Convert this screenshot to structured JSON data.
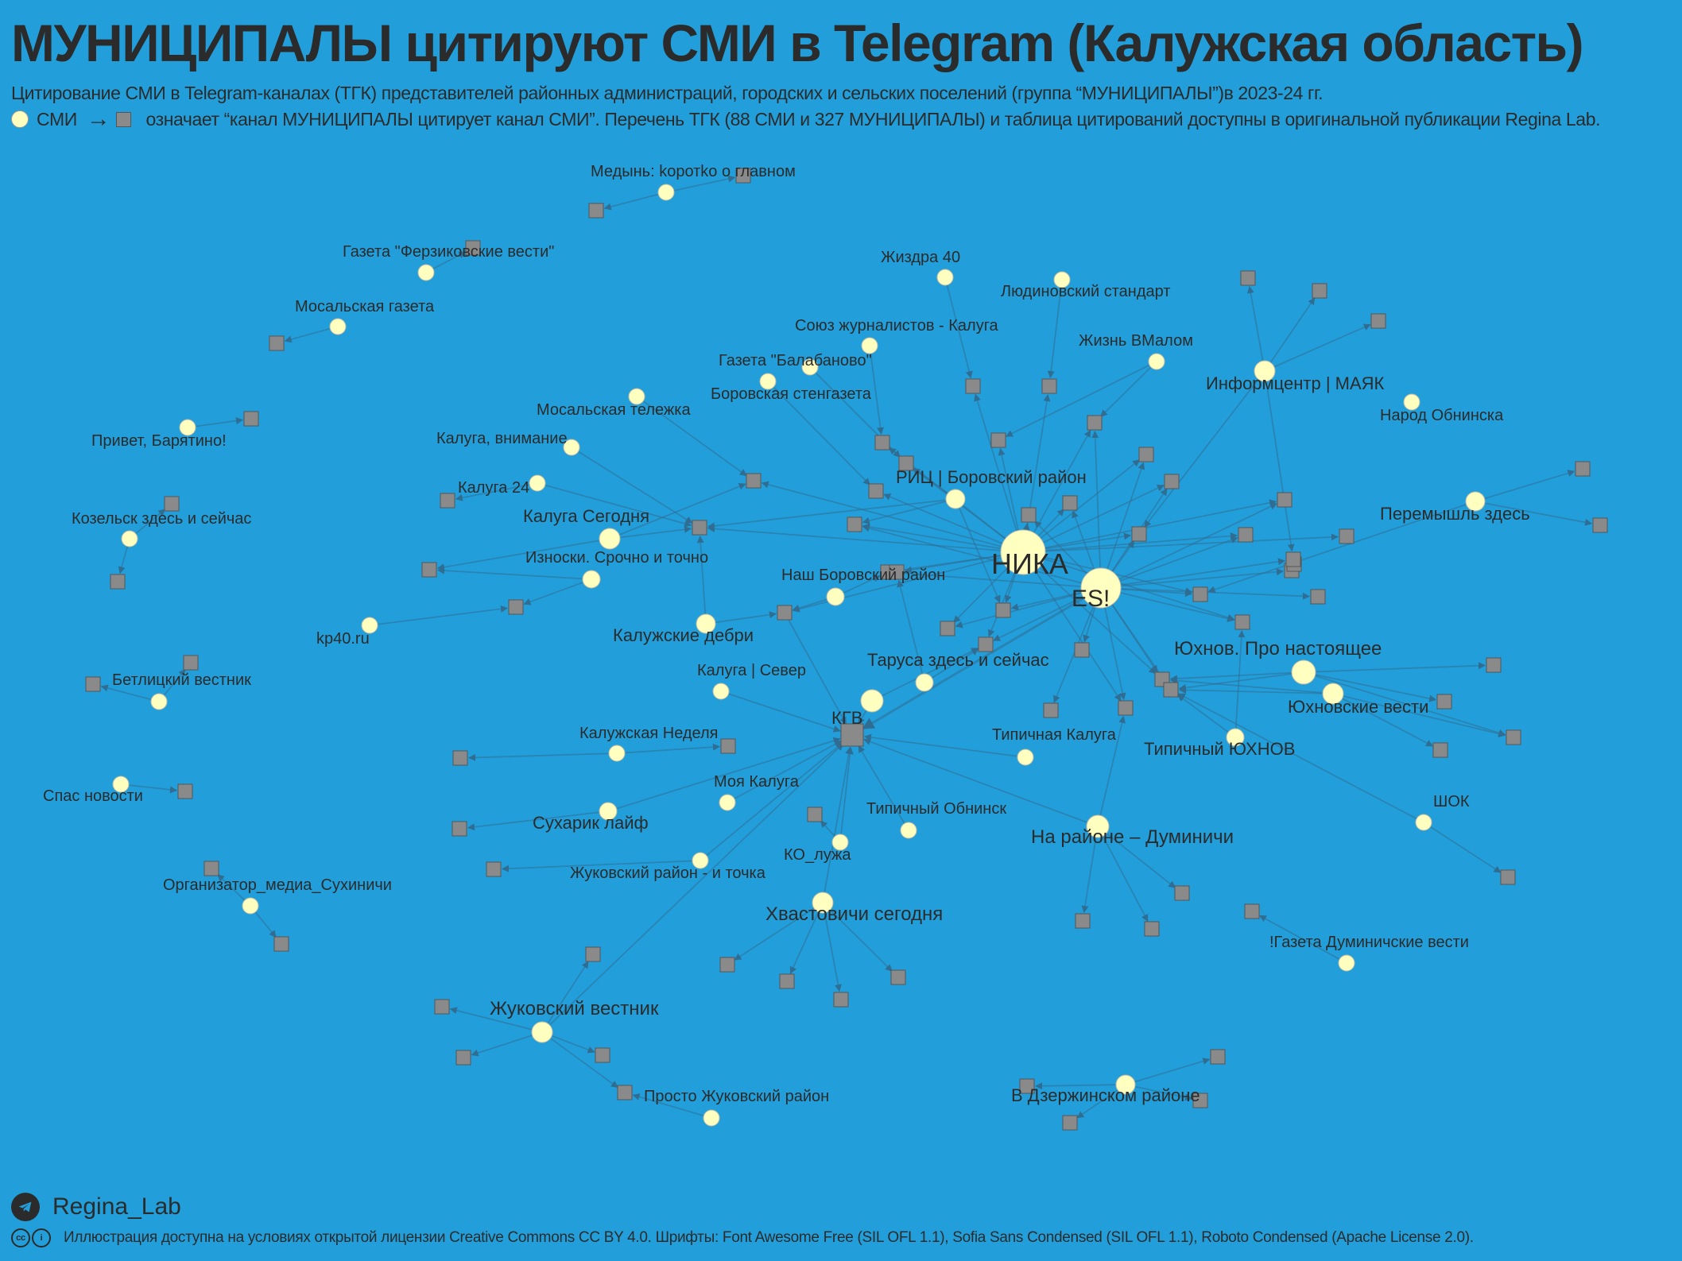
{
  "title": "МУНИЦИПАЛЫ цитируют СМИ в Telegram (Калужская область)",
  "subtitle": "Цитирование СМИ в Telegram-каналах (ТГК) представителей районных администраций, городских и сельских поселений (группа “МУНИЦИПАЛЫ”)в 2023-24 гг.",
  "legend": {
    "media_label": "СМИ",
    "arrow": "→",
    "explanation": "означает “канал МУНИЦИПАЛЫ цитирует канал СМИ”. Перечень ТГК (88 СМИ и 327 МУНИЦИПАЛЫ) и таблица цитирований доступны в оригинальной публикации Regina Lab."
  },
  "colors": {
    "background": "#229fdb",
    "media_node": "#ffffc0",
    "municipal_node": "#8a8a8a",
    "edge": "#2f6d93",
    "text": "#2b2b2b"
  },
  "labels": {
    "nika": "НИКА",
    "es": "ES!",
    "kgv": "КГВ",
    "medyn": "Медынь: koротko о главном",
    "ferzikovo": "Газета \"Ферзиковские вести\"",
    "mosalsk_gazeta": "Мосальская газета",
    "privet_baryatino": "Привет, Барятино!",
    "kozelsk": "Козельск здесь и сейчас",
    "betlitsa": "Бетлицкий вестник",
    "spas": "Спас новости",
    "organizator": "Организатор_медиа_Сухиничи",
    "zhizdra": "Жиздра 40",
    "lyudinovo": "Людиновский стандарт",
    "soyuz": "Союз журналистов - Калуга",
    "zhizn_vmalom": "Жизнь ВМалом",
    "balabanovo": "Газета \"Балабаново\"",
    "borovsk_sten": "Боровская стенгазета",
    "infocentr": "Информцентр | МАЯК",
    "narod_obninsk": "Народ Обнинска",
    "mosalsk_telezhka": "Мосальская тележка",
    "kaluga_vnimanie": "Калуга, внимание",
    "kaluga24": "Калуга 24",
    "ric_borovsk": "РИЦ | Боровский район",
    "kaluga_segodnya": "Калуга Сегодня",
    "peremyshl": "Перемышль здесь",
    "iznoski": "Износки. Срочно и точно",
    "nash_borovsk": "Наш Боровский район",
    "kp40": "kp40.ru",
    "kaluzhskie_debri": "Калужские дебри",
    "yukhnov_pro": "Юхнов. Про настоящее",
    "tarusa": "Таруса здесь и сейчас",
    "kaluga_sever": "Калуга | Север",
    "yukhnov_vesti": "Юхновские вести",
    "kaluzhskaya_nedelya": "Калужская Неделя",
    "tipichnaya_kaluga": "Типичная Калуга",
    "tipichny_yukhnov": "Типичный ЮХНОВ",
    "moya_kaluga": "Моя Калуга",
    "shok": "ШОК",
    "tipichny_obninsk": "Типичный Обнинск",
    "sukharik": "Сухарик лайф",
    "na_raione": "На районе – Думиничи",
    "ko_luzha": "КО_лужа",
    "zhukovsky_tochka": "Жуковский район - и точка",
    "khvastovichi": "Хвастовичи сегодня",
    "gazeta_duminichi": "!Газета Думиничские вести",
    "zhukovsky_vestnik": "Жуковский вестник",
    "prosto_zhukovsky": "Просто Жуковский район",
    "dzerzhinsky": "В Дзержинском районе"
  },
  "footer": {
    "brand": "Regina_Lab",
    "license": "Иллюстрация доступна на условиях открытой лицензии Creative Commons CC BY 4.0. Шрифты: Font Awesome Free (SIL OFL 1.1), Sofia Sans Condensed (SIL OFL 1.1), Roboto Condensed (Apache License 2.0)."
  }
}
